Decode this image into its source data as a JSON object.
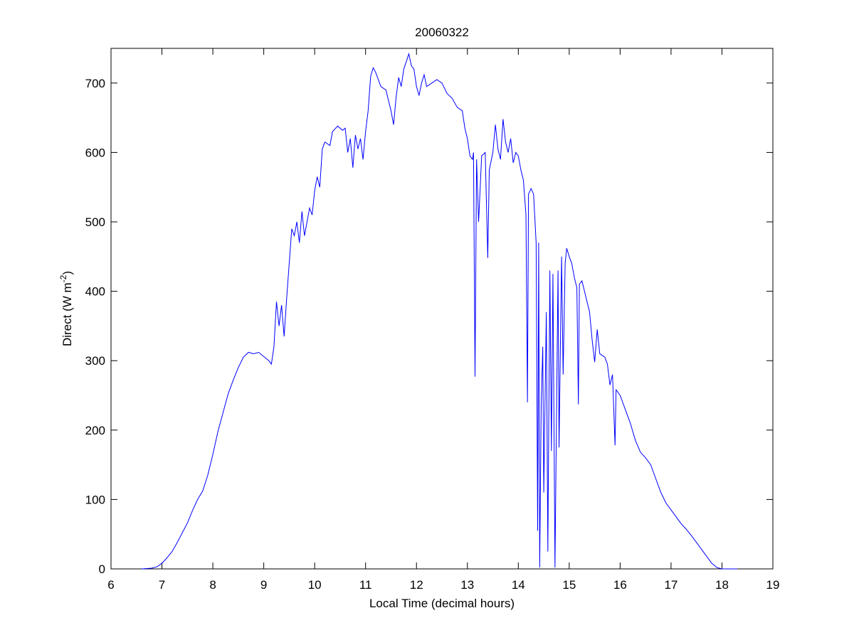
{
  "chart_data": {
    "type": "line",
    "title": "20060322",
    "x_label": "Local Time (decimal hours)",
    "y_label": {
      "text": "Direct (W m",
      "superscript": "-2",
      "end": ")"
    },
    "xlim": [
      6,
      19
    ],
    "xticks": [
      6,
      7,
      8,
      9,
      10,
      11,
      12,
      13,
      14,
      15,
      16,
      17,
      18,
      19
    ],
    "ylim": [
      0,
      750
    ],
    "yticks": [
      0,
      100,
      200,
      300,
      400,
      500,
      600,
      700
    ],
    "grid": false,
    "series": [
      {
        "color": "#0000ff",
        "x": [
          6.6,
          6.8,
          6.9,
          7.0,
          7.1,
          7.2,
          7.3,
          7.4,
          7.5,
          7.6,
          7.7,
          7.8,
          7.9,
          8.0,
          8.1,
          8.2,
          8.3,
          8.4,
          8.5,
          8.6,
          8.7,
          8.8,
          8.9,
          9.0,
          9.1,
          9.15,
          9.2,
          9.25,
          9.3,
          9.35,
          9.4,
          9.45,
          9.5,
          9.55,
          9.6,
          9.65,
          9.7,
          9.75,
          9.8,
          9.85,
          9.9,
          9.95,
          10.0,
          10.05,
          10.1,
          10.15,
          10.2,
          10.3,
          10.35,
          10.45,
          10.55,
          10.6,
          10.65,
          10.7,
          10.75,
          10.8,
          10.85,
          10.9,
          10.95,
          11.0,
          11.05,
          11.1,
          11.15,
          11.2,
          11.3,
          11.4,
          11.5,
          11.55,
          11.6,
          11.65,
          11.7,
          11.75,
          11.85,
          11.9,
          11.95,
          12.0,
          12.05,
          12.1,
          12.15,
          12.2,
          12.3,
          12.4,
          12.5,
          12.6,
          12.7,
          12.8,
          12.9,
          12.95,
          13.0,
          13.05,
          13.1,
          13.12,
          13.15,
          13.18,
          13.22,
          13.28,
          13.35,
          13.4,
          13.43,
          13.5,
          13.55,
          13.6,
          13.65,
          13.7,
          13.75,
          13.8,
          13.85,
          13.9,
          13.95,
          14.0,
          14.05,
          14.1,
          14.15,
          14.18,
          14.2,
          14.25,
          14.3,
          14.35,
          14.38,
          14.4,
          14.42,
          14.45,
          14.48,
          14.5,
          14.55,
          14.58,
          14.62,
          14.65,
          14.68,
          14.72,
          14.75,
          14.78,
          14.8,
          14.85,
          14.88,
          14.92,
          14.95,
          15.0,
          15.05,
          15.1,
          15.15,
          15.18,
          15.2,
          15.25,
          15.3,
          15.4,
          15.45,
          15.5,
          15.55,
          15.6,
          15.7,
          15.75,
          15.8,
          15.85,
          15.9,
          15.92,
          16.0,
          16.05,
          16.1,
          16.2,
          16.3,
          16.4,
          16.5,
          16.6,
          16.7,
          16.8,
          16.9,
          17.0,
          17.1,
          17.2,
          17.3,
          17.4,
          17.5,
          17.6,
          17.7,
          17.8,
          17.9,
          18.0,
          18.3
        ],
        "values": [
          0,
          1,
          3,
          8,
          16,
          25,
          38,
          52,
          66,
          84,
          100,
          112,
          135,
          165,
          198,
          225,
          252,
          272,
          290,
          305,
          312,
          310,
          312,
          306,
          300,
          295,
          320,
          385,
          350,
          380,
          335,
          390,
          440,
          490,
          480,
          500,
          470,
          515,
          480,
          500,
          520,
          510,
          545,
          565,
          550,
          605,
          615,
          610,
          630,
          638,
          632,
          635,
          600,
          620,
          578,
          625,
          605,
          620,
          590,
          630,
          660,
          710,
          722,
          715,
          695,
          690,
          660,
          640,
          680,
          708,
          695,
          720,
          742,
          725,
          720,
          695,
          682,
          700,
          712,
          695,
          700,
          705,
          700,
          685,
          678,
          665,
          660,
          635,
          620,
          595,
          590,
          600,
          277,
          590,
          500,
          595,
          600,
          448,
          575,
          600,
          640,
          605,
          590,
          648,
          615,
          600,
          620,
          585,
          600,
          595,
          575,
          560,
          510,
          240,
          540,
          548,
          540,
          470,
          55,
          470,
          2,
          240,
          320,
          110,
          370,
          25,
          430,
          170,
          425,
          2,
          220,
          430,
          175,
          450,
          280,
          440,
          462,
          450,
          440,
          420,
          405,
          237,
          410,
          415,
          400,
          370,
          330,
          298,
          345,
          310,
          305,
          295,
          265,
          280,
          178,
          258,
          250,
          240,
          230,
          210,
          185,
          168,
          160,
          150,
          130,
          110,
          95,
          85,
          75,
          65,
          57,
          48,
          38,
          28,
          18,
          8,
          2,
          0,
          0
        ]
      }
    ]
  }
}
